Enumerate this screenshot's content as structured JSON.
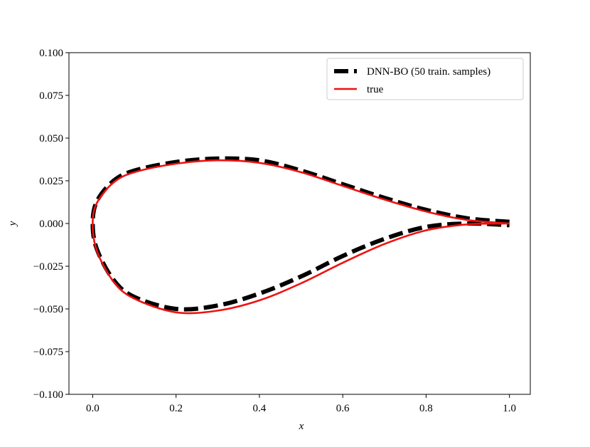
{
  "chart_data": {
    "type": "line",
    "xlabel": "x",
    "ylabel": "y",
    "x": [
      1.0,
      0.9,
      0.8,
      0.7,
      0.6,
      0.5,
      0.4,
      0.3,
      0.2,
      0.1,
      0.05,
      0.01,
      0,
      0.01,
      0.05,
      0.1,
      0.2,
      0.3,
      0.4,
      0.5,
      0.6,
      0.7,
      0.8,
      0.9,
      1.0
    ],
    "series": [
      {
        "name": "DNN-BO (50 train. samples)",
        "color": "#000000",
        "dashed": true,
        "values": [
          0.001,
          0.003,
          0.008,
          0.015,
          0.023,
          0.031,
          0.037,
          0.038,
          0.036,
          0.031,
          0.025,
          0.013,
          0,
          -0.015,
          -0.033,
          -0.043,
          -0.05,
          -0.048,
          -0.041,
          -0.031,
          -0.019,
          -0.009,
          -0.002,
          0,
          -0.001
        ]
      },
      {
        "name": "true",
        "color": "#ee1111",
        "dashed": false,
        "values": [
          0,
          0.002,
          0.007,
          0.014,
          0.022,
          0.03,
          0.0355,
          0.037,
          0.035,
          0.03,
          0.024,
          0.012,
          0,
          -0.016,
          -0.034,
          -0.044,
          -0.052,
          -0.051,
          -0.045,
          -0.035,
          -0.023,
          -0.012,
          -0.004,
          -0.0005,
          0
        ]
      }
    ],
    "xlim": [
      -0.057,
      1.05
    ],
    "xticks": [
      {
        "value": 0,
        "label": "0.0"
      },
      0.2,
      0.4,
      0.6,
      0.8,
      {
        "value": 1,
        "label": "1.0"
      }
    ],
    "ylim": [
      -0.1,
      0.1
    ],
    "yticks": [
      {
        "value": -0.1,
        "label": "−0.100"
      },
      {
        "value": -0.075,
        "label": "−0.075"
      },
      {
        "value": -0.05,
        "label": "−0.050"
      },
      {
        "value": -0.025,
        "label": "−0.025"
      },
      {
        "value": 0,
        "label": "0.000"
      },
      {
        "value": 0.025,
        "label": "0.025"
      },
      {
        "value": 0.05,
        "label": "0.050"
      },
      {
        "value": 0.075,
        "label": "0.075"
      },
      {
        "value": 0.1,
        "label": "0.100"
      }
    ],
    "legend": "upper right",
    "grid": false
  }
}
